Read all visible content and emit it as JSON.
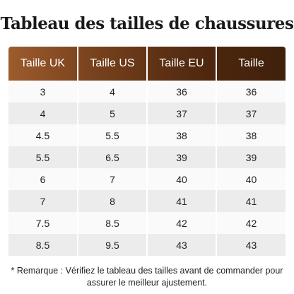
{
  "header": {
    "title": "Tableau des tailles de chaussures"
  },
  "table": {
    "columns": [
      "Taille UK",
      "Taille US",
      "Taille EU",
      "Taille"
    ],
    "rows": [
      [
        3,
        4,
        36,
        36
      ],
      [
        4,
        5,
        37,
        37
      ],
      [
        4.5,
        5.5,
        38,
        38
      ],
      [
        5.5,
        6.5,
        39,
        39
      ],
      [
        6,
        7,
        40,
        40
      ],
      [
        7,
        8,
        41,
        41
      ],
      [
        7.5,
        8.5,
        42,
        42
      ],
      [
        8.5,
        9.5,
        43,
        43
      ]
    ]
  },
  "note": "* Remarque : Vérifiez le tableau des tailles avant de commander pour assurer le meilleur ajustement."
}
